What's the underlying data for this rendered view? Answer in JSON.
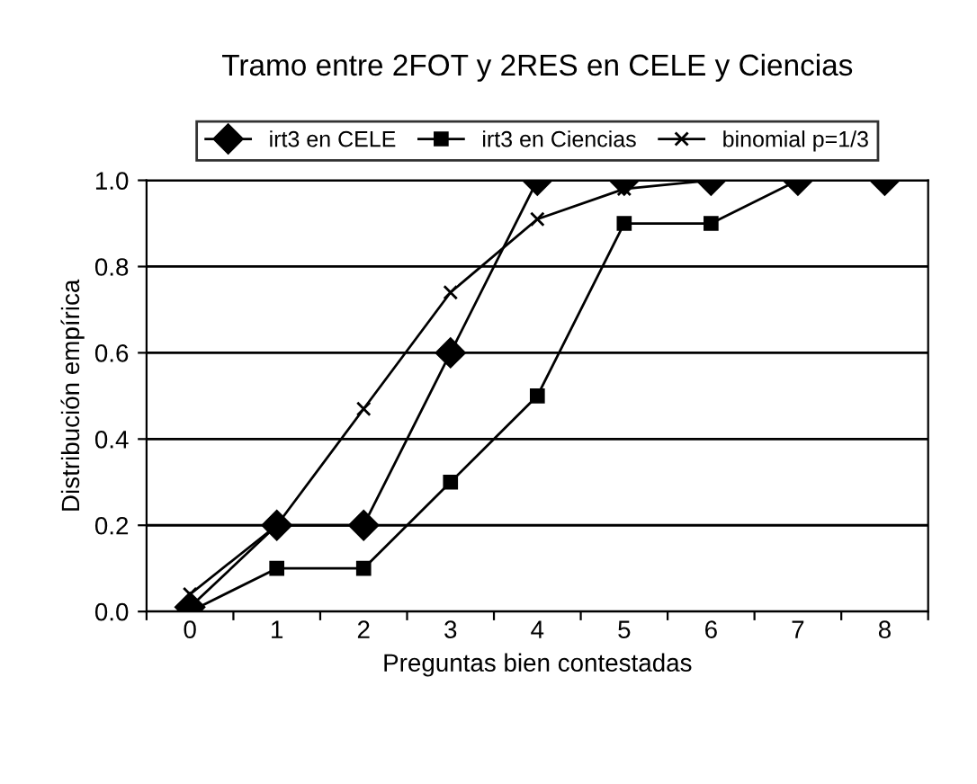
{
  "chart_data": {
    "type": "line",
    "title": "Tramo entre 2FOT y 2RES en CELE y Ciencias",
    "xlabel": "Preguntas bien contestadas",
    "ylabel": "Distribución empírica",
    "categories": [
      "0",
      "1",
      "2",
      "3",
      "4",
      "5",
      "6",
      "7",
      "8"
    ],
    "series": [
      {
        "name": "irt3 en CELE",
        "color": "#000000",
        "marker": "diamond",
        "values": [
          0.01,
          0.2,
          0.2,
          0.6,
          1.0,
          1.0,
          1.0,
          1.0,
          1.0
        ]
      },
      {
        "name": "irt3 en Ciencias",
        "color": "#000000",
        "marker": "square",
        "values": [
          0.0,
          0.1,
          0.1,
          0.3,
          0.5,
          0.9,
          0.9,
          1.0,
          1.0
        ]
      },
      {
        "name": "binomial p=1/3",
        "color": "#000000",
        "marker": "cross",
        "values": [
          0.04,
          0.2,
          0.47,
          0.74,
          0.91,
          0.98,
          1.0,
          1.0,
          1.0
        ]
      }
    ],
    "ylim": [
      0,
      1
    ],
    "yticks": [
      {
        "value": 0,
        "label": "0.0"
      },
      {
        "value": 0.2,
        "label": "0.2"
      },
      {
        "value": 0.4,
        "label": "0.4"
      },
      {
        "value": 0.6,
        "label": "0.6"
      },
      {
        "value": 0.8,
        "label": "0.8"
      },
      {
        "value": 1.0,
        "label": "1.0"
      }
    ],
    "grid": "y",
    "legend": "top",
    "line_style": "solid"
  }
}
